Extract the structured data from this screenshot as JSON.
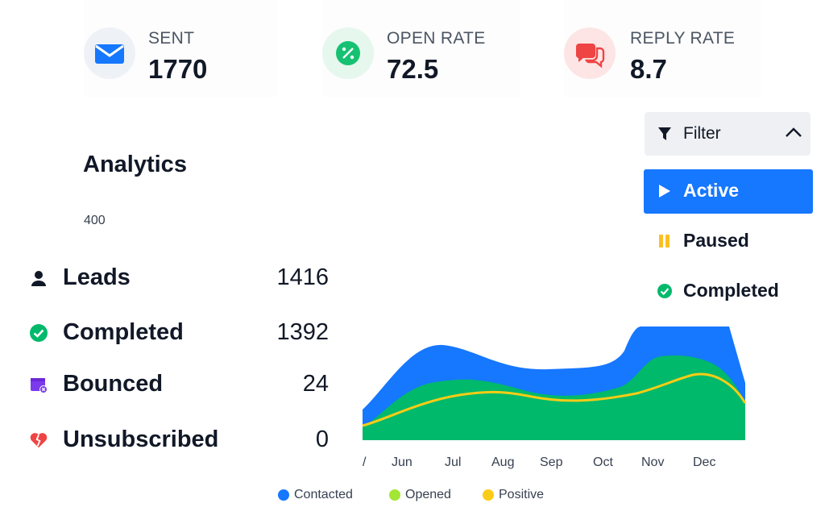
{
  "stats": [
    {
      "label": "SENT",
      "value": "1770",
      "icon": "envelope-icon",
      "bg": "#eef2f7",
      "color": "#1677ff"
    },
    {
      "label": "OPEN RATE",
      "value": "72.5",
      "icon": "percent-icon",
      "bg": "#e6f7ee",
      "color": "#16c172"
    },
    {
      "label": "REPLY RATE",
      "value": "8.7",
      "icon": "chat-bubbles-icon",
      "bg": "#fde5e5",
      "color": "#ef4444"
    }
  ],
  "analytics": {
    "title": "Analytics",
    "y_tick": "400"
  },
  "leads": [
    {
      "label": "Leads",
      "value": "1416",
      "icon": "user-icon"
    },
    {
      "label": "Completed",
      "value": "1392",
      "icon": "check-circle-icon"
    },
    {
      "label": "Bounced",
      "value": "24",
      "icon": "calendar-x-icon"
    },
    {
      "label": "Unsubscribed",
      "value": "0",
      "icon": "broken-heart-icon"
    }
  ],
  "filter": {
    "label": "Filter",
    "icon": "funnel-icon",
    "chevron": "chevron-up-icon"
  },
  "menu": [
    {
      "label": "Active",
      "icon": "play-icon",
      "active": true
    },
    {
      "label": "Paused",
      "icon": "pause-icon",
      "active": false
    },
    {
      "label": "Completed",
      "icon": "check-circle-icon",
      "active": false
    }
  ],
  "chart_data": {
    "type": "area",
    "categories": [
      "/",
      "Jun",
      "Jul",
      "Aug",
      "Sep",
      "Oct",
      "Nov",
      "Dec"
    ],
    "series": [
      {
        "name": "Contacted",
        "color": "#1677ff"
      },
      {
        "name": "Opened",
        "color": "#a3e635"
      },
      {
        "name": "Positive",
        "color": "#facc15"
      }
    ],
    "legend_position": "bottom",
    "grid": false
  },
  "colors": {
    "accent": "#1677ff",
    "green": "#00b96b",
    "pause": "#fbbf24"
  }
}
